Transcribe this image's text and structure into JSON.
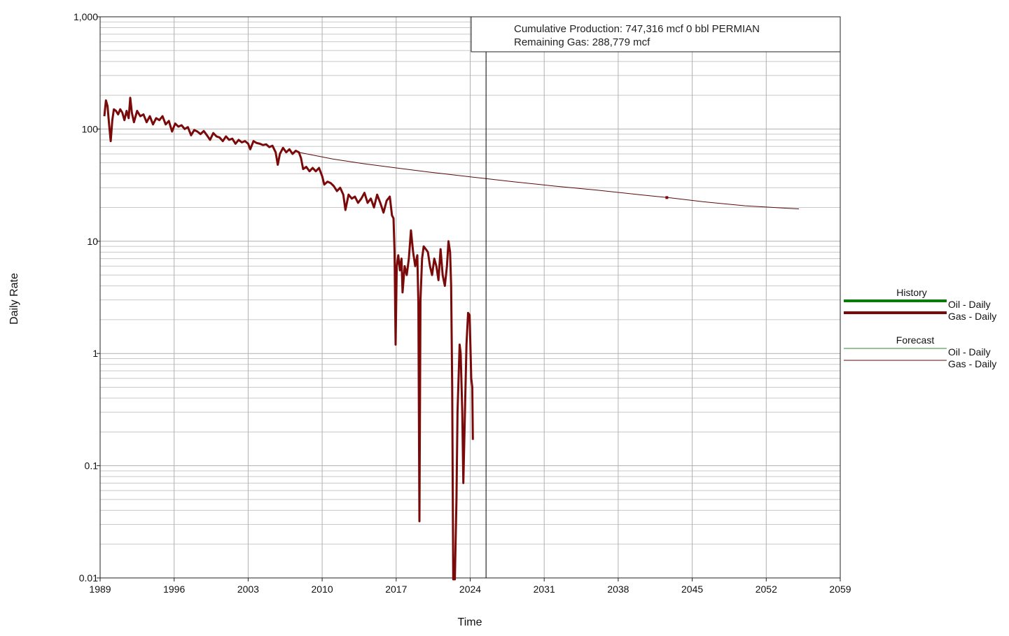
{
  "chart_data": {
    "type": "line",
    "x_axis": {
      "label": "Time",
      "range": [
        1989,
        2059
      ],
      "ticks": [
        "1989",
        "1996",
        "2003",
        "2010",
        "2017",
        "2024",
        "2031",
        "2038",
        "2045",
        "2052",
        "2059"
      ]
    },
    "y_axis": {
      "label": "Daily Rate",
      "scale": "log",
      "range": [
        0.01,
        1000
      ],
      "ticks": [
        "0.01",
        "0.1",
        "1",
        "10",
        "100",
        "1,000"
      ]
    },
    "grid": true,
    "current_time_marker": 2025.5,
    "annotation": {
      "line1": "Cumulative Production: 747,316 mcf 0 bbl PERMIAN",
      "line2": "Remaining Gas: 288,779 mcf"
    },
    "legend": {
      "placement": "right",
      "history_title": "History",
      "forecast_title": "Forecast",
      "oil_label": "Oil - Daily",
      "gas_label": "Gas - Daily"
    },
    "colors": {
      "gas": "#7a0a0a",
      "oil": "#0a7a0a",
      "forecast_gas": "#5a0a0a",
      "forecast_oil": "#2e8b2e",
      "grid": "#c8c8c8",
      "marker": "#000000"
    },
    "series": [
      {
        "name": "Gas - Daily",
        "kind": "history",
        "points": [
          [
            1989.4,
            130
          ],
          [
            1989.55,
            180
          ],
          [
            1989.7,
            160
          ],
          [
            1989.85,
            110
          ],
          [
            1990.0,
            78
          ],
          [
            1990.15,
            120
          ],
          [
            1990.3,
            150
          ],
          [
            1990.5,
            145
          ],
          [
            1990.7,
            135
          ],
          [
            1990.9,
            150
          ],
          [
            1991.1,
            140
          ],
          [
            1991.3,
            120
          ],
          [
            1991.5,
            145
          ],
          [
            1991.7,
            125
          ],
          [
            1991.85,
            190
          ],
          [
            1992.0,
            140
          ],
          [
            1992.2,
            115
          ],
          [
            1992.5,
            145
          ],
          [
            1992.8,
            130
          ],
          [
            1993.1,
            135
          ],
          [
            1993.4,
            115
          ],
          [
            1993.7,
            130
          ],
          [
            1994.0,
            110
          ],
          [
            1994.3,
            125
          ],
          [
            1994.6,
            120
          ],
          [
            1994.9,
            130
          ],
          [
            1995.2,
            110
          ],
          [
            1995.5,
            118
          ],
          [
            1995.8,
            95
          ],
          [
            1996.1,
            112
          ],
          [
            1996.4,
            105
          ],
          [
            1996.7,
            108
          ],
          [
            1997.0,
            100
          ],
          [
            1997.3,
            104
          ],
          [
            1997.6,
            88
          ],
          [
            1997.9,
            98
          ],
          [
            1998.2,
            95
          ],
          [
            1998.5,
            90
          ],
          [
            1998.8,
            96
          ],
          [
            1999.1,
            88
          ],
          [
            1999.4,
            80
          ],
          [
            1999.7,
            92
          ],
          [
            2000.0,
            86
          ],
          [
            2000.3,
            84
          ],
          [
            2000.6,
            78
          ],
          [
            2000.9,
            86
          ],
          [
            2001.2,
            80
          ],
          [
            2001.5,
            82
          ],
          [
            2001.8,
            74
          ],
          [
            2002.1,
            80
          ],
          [
            2002.4,
            76
          ],
          [
            2002.7,
            78
          ],
          [
            2003.0,
            74
          ],
          [
            2003.2,
            66
          ],
          [
            2003.5,
            78
          ],
          [
            2003.8,
            75
          ],
          [
            2004.1,
            74
          ],
          [
            2004.4,
            72
          ],
          [
            2004.7,
            73
          ],
          [
            2005.0,
            69
          ],
          [
            2005.3,
            71
          ],
          [
            2005.6,
            62
          ],
          [
            2005.8,
            48
          ],
          [
            2006.0,
            60
          ],
          [
            2006.3,
            68
          ],
          [
            2006.6,
            62
          ],
          [
            2006.9,
            66
          ],
          [
            2007.2,
            60
          ],
          [
            2007.5,
            64
          ],
          [
            2007.8,
            62
          ],
          [
            2008.0,
            55
          ],
          [
            2008.2,
            44
          ],
          [
            2008.5,
            46
          ],
          [
            2008.8,
            42
          ],
          [
            2009.1,
            45
          ],
          [
            2009.4,
            42
          ],
          [
            2009.7,
            45
          ],
          [
            2010.0,
            38
          ],
          [
            2010.2,
            32
          ],
          [
            2010.5,
            34
          ],
          [
            2010.8,
            33
          ],
          [
            2011.1,
            31
          ],
          [
            2011.4,
            28
          ],
          [
            2011.7,
            30
          ],
          [
            2012.0,
            26
          ],
          [
            2012.2,
            19
          ],
          [
            2012.5,
            26
          ],
          [
            2012.8,
            24
          ],
          [
            2013.1,
            25
          ],
          [
            2013.4,
            22
          ],
          [
            2013.7,
            24
          ],
          [
            2014.0,
            27
          ],
          [
            2014.3,
            22
          ],
          [
            2014.6,
            24
          ],
          [
            2014.9,
            20
          ],
          [
            2015.2,
            26
          ],
          [
            2015.5,
            22
          ],
          [
            2015.8,
            18
          ],
          [
            2016.1,
            23
          ],
          [
            2016.4,
            25
          ],
          [
            2016.6,
            17
          ],
          [
            2016.75,
            16
          ],
          [
            2016.85,
            8
          ],
          [
            2016.95,
            1.2
          ],
          [
            2017.05,
            6
          ],
          [
            2017.2,
            7.5
          ],
          [
            2017.35,
            5.5
          ],
          [
            2017.5,
            7
          ],
          [
            2017.6,
            3.5
          ],
          [
            2017.8,
            6
          ],
          [
            2018.0,
            5
          ],
          [
            2018.2,
            7
          ],
          [
            2018.4,
            12.5
          ],
          [
            2018.6,
            8
          ],
          [
            2018.8,
            6
          ],
          [
            2019.0,
            7.5
          ],
          [
            2019.1,
            2.8
          ],
          [
            2019.2,
            0.032
          ],
          [
            2019.3,
            3
          ],
          [
            2019.45,
            7
          ],
          [
            2019.6,
            9
          ],
          [
            2019.8,
            8.5
          ],
          [
            2020.0,
            8
          ],
          [
            2020.2,
            6
          ],
          [
            2020.4,
            5
          ],
          [
            2020.6,
            7
          ],
          [
            2020.8,
            6
          ],
          [
            2021.0,
            4.5
          ],
          [
            2021.2,
            8.5
          ],
          [
            2021.4,
            5
          ],
          [
            2021.6,
            4
          ],
          [
            2021.8,
            6
          ],
          [
            2021.95,
            10
          ],
          [
            2022.1,
            8
          ],
          [
            2022.2,
            4
          ],
          [
            2022.3,
            0.5
          ],
          [
            2022.4,
            0.008
          ],
          [
            2022.55,
            0.008
          ],
          [
            2022.7,
            0.05
          ],
          [
            2022.8,
            0.3
          ],
          [
            2023.0,
            1.2
          ],
          [
            2023.1,
            1
          ],
          [
            2023.25,
            0.3
          ],
          [
            2023.35,
            0.07
          ],
          [
            2023.5,
            0.3
          ],
          [
            2023.65,
            1.2
          ],
          [
            2023.8,
            2.3
          ],
          [
            2023.95,
            2.2
          ],
          [
            2024.1,
            0.6
          ],
          [
            2024.2,
            0.5
          ],
          [
            2024.25,
            0.17
          ]
        ]
      },
      {
        "name": "Gas - Daily",
        "kind": "forecast",
        "points": [
          [
            2007.8,
            62
          ],
          [
            2011,
            54
          ],
          [
            2014,
            49
          ],
          [
            2017,
            45
          ],
          [
            2020,
            41.5
          ],
          [
            2024,
            37.5
          ],
          [
            2028,
            34
          ],
          [
            2032,
            31
          ],
          [
            2036,
            28.5
          ],
          [
            2040,
            26
          ],
          [
            2043,
            24.3
          ],
          [
            2046,
            22.5
          ],
          [
            2050,
            20.7
          ],
          [
            2055.1,
            19.4
          ]
        ]
      }
    ],
    "forecast_marker": {
      "x": 2042.6,
      "y": 24.5
    }
  }
}
